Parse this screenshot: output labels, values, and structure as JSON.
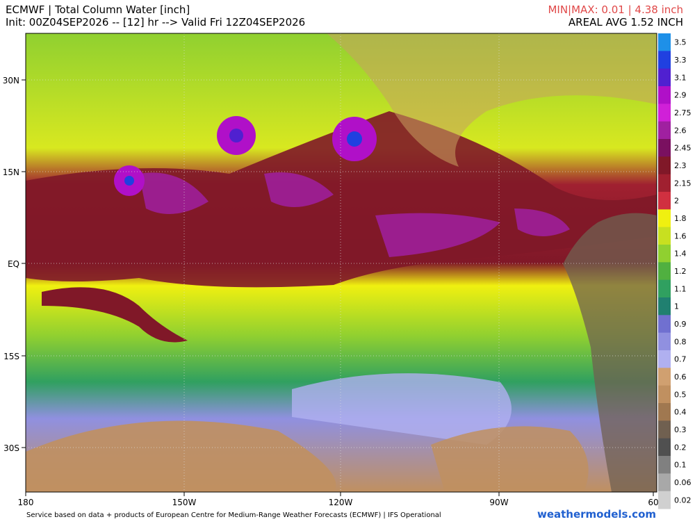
{
  "header": {
    "title": "ECMWF | Total Column Water [inch]",
    "init": "Init: 00Z04SEP2026 -- [12] hr --> Valid Fri 12Z04SEP2026",
    "minmax": "MIN|MAX: 0.01 | 4.38 inch",
    "areal": "AREAL AVG 1.52 INCH"
  },
  "lat_labels": [
    "30N",
    "15N",
    "EQ",
    "15S",
    "30S"
  ],
  "lon_labels": [
    "180",
    "150W",
    "120W",
    "90W",
    "60"
  ],
  "colorbar": {
    "labels": [
      "3.5",
      "3.3",
      "3.1",
      "2.9",
      "2.75",
      "2.6",
      "2.45",
      "2.3",
      "2.15",
      "2",
      "1.8",
      "1.6",
      "1.4",
      "1.2",
      "1.1",
      "1",
      "0.9",
      "0.8",
      "0.7",
      "0.6",
      "0.5",
      "0.4",
      "0.3",
      "0.2",
      "0.1",
      "0.06",
      "0.02"
    ],
    "colors": [
      "#1e90e8",
      "#2040e0",
      "#5020d0",
      "#b010c8",
      "#d020d8",
      "#a020a0",
      "#7a1060",
      "#801828",
      "#a02030",
      "#d03040",
      "#f0f010",
      "#c8e020",
      "#90d030",
      "#50b040",
      "#30a060",
      "#208070",
      "#7070d0",
      "#9090e0",
      "#b0b0f0",
      "#d0a070",
      "#c09060",
      "#a07850",
      "#706050",
      "#505050",
      "#808080",
      "#a8a8a8",
      "#d0d0d0"
    ]
  },
  "footer": {
    "credit": "Service based on data + products of European Centre for Medium-Range Weather Forecasts (ECMWF) | IFS Operational",
    "site": "weathermodels.com"
  }
}
